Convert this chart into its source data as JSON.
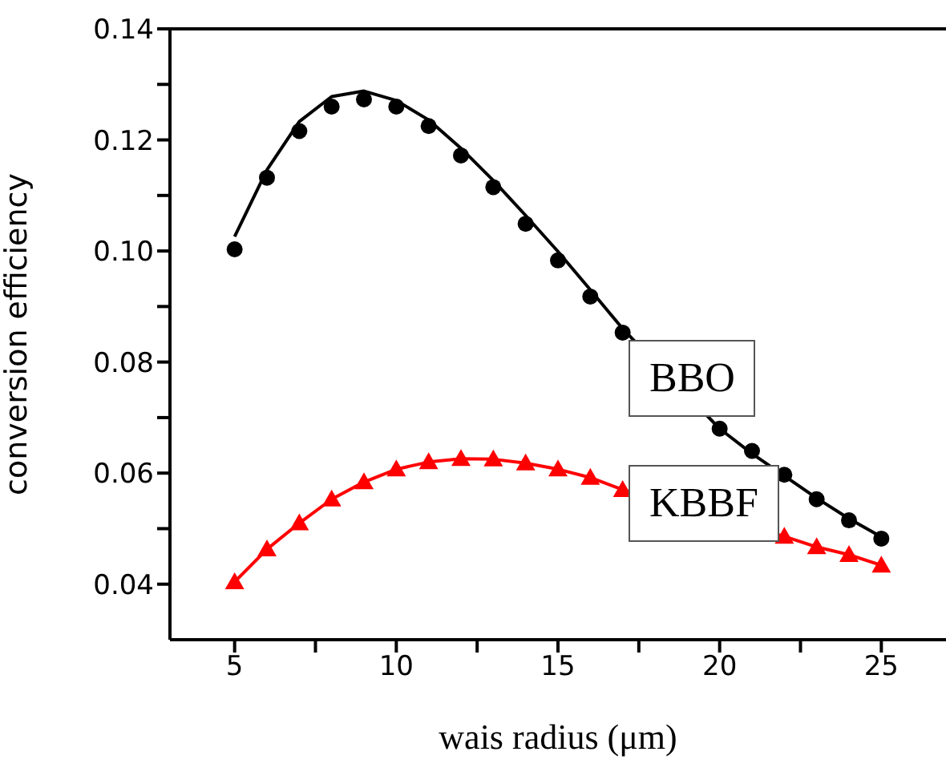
{
  "chart_data": {
    "type": "line",
    "xlabel": "wais radius (μm)",
    "ylabel": "conversion efficiency",
    "x": [
      5,
      6,
      7,
      8,
      9,
      10,
      11,
      12,
      13,
      14,
      15,
      16,
      17,
      18,
      19,
      20,
      21,
      22,
      23,
      24,
      25
    ],
    "series": [
      {
        "type": "scatter",
        "color": "#000000",
        "marker": "circle",
        "values": [
          0.1003,
          0.1132,
          0.1216,
          0.126,
          0.1273,
          0.126,
          0.1225,
          0.1172,
          0.1115,
          0.1049,
          0.0983,
          0.0918,
          0.0853,
          null,
          null,
          0.068,
          0.064,
          0.0597,
          0.0553,
          0.0515,
          0.0482
        ]
      },
      {
        "name": "BBO",
        "color": "#000000",
        "marker": "none",
        "values": [
          0.1026,
          0.1146,
          0.1233,
          0.1278,
          0.1288,
          0.1271,
          0.1236,
          0.1185,
          0.1127,
          0.1064,
          0.0999,
          0.093,
          0.086,
          null,
          null,
          0.068,
          0.0635,
          0.0595,
          0.0555,
          0.0518,
          0.0485
        ]
      },
      {
        "name": "KBBF",
        "color": "#ff0000",
        "marker": "triangle",
        "values": [
          0.0404,
          0.0463,
          0.051,
          0.0553,
          0.0584,
          0.0607,
          0.062,
          0.0626,
          0.0625,
          0.0618,
          0.0607,
          0.0592,
          0.057,
          null,
          null,
          null,
          null,
          0.0486,
          0.0467,
          0.0453,
          0.0434
        ]
      }
    ],
    "xlim": [
      3,
      27
    ],
    "xticks": [
      5,
      {
        "value": 7.5,
        "label": null
      },
      10,
      {
        "value": 12.5,
        "label": null
      },
      15,
      {
        "value": 17.5,
        "label": null
      },
      20,
      {
        "value": 22.5,
        "label": null
      },
      25
    ],
    "ylim": [
      0.03,
      0.14
    ],
    "yticks": [
      {
        "value": 0.04,
        "label": "0.04"
      },
      {
        "value": 0.05,
        "label": null
      },
      {
        "value": 0.06,
        "label": "0.06"
      },
      {
        "value": 0.07,
        "label": null
      },
      {
        "value": 0.08,
        "label": "0.08"
      },
      {
        "value": 0.09,
        "label": null
      },
      {
        "value": 0.1,
        "label": "0.10"
      },
      {
        "value": 0.11,
        "label": null
      },
      {
        "value": 0.12,
        "label": "0.12"
      },
      {
        "value": 0.13,
        "label": null
      },
      {
        "value": 0.14,
        "label": "0.14"
      }
    ],
    "grid": false,
    "legend": false
  }
}
